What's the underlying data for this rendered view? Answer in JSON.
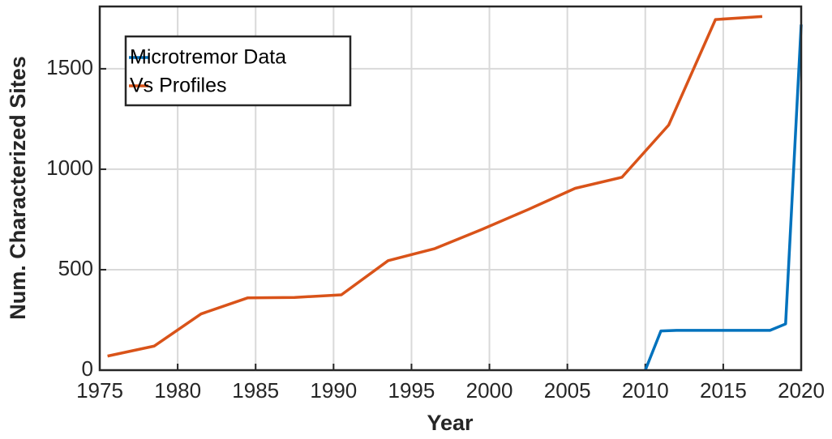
{
  "chart_data": {
    "type": "line",
    "x_label": "Year",
    "y_label": "Num. Characterized Sites",
    "series": [
      {
        "name": "Microtremor Data",
        "color": "#0072BD",
        "x": [
          2010,
          2011,
          2012,
          2018,
          2019,
          2020
        ],
        "values": [
          0,
          195,
          198,
          198,
          230,
          1720
        ]
      },
      {
        "name": "Vs Profiles",
        "color": "#D95319",
        "x": [
          1975.5,
          1978.5,
          1981.5,
          1984.5,
          1987.5,
          1990.5,
          1993.5,
          1996.5,
          1999.5,
          2002.5,
          2005.5,
          2008.5,
          2011.5,
          2014.5,
          2017.5
        ],
        "values": [
          70,
          120,
          280,
          360,
          362,
          375,
          545,
          605,
          700,
          800,
          905,
          960,
          1220,
          1745,
          1760
        ]
      }
    ],
    "xlim": [
      1975,
      2020
    ],
    "xticks": [
      1975,
      1980,
      1985,
      1990,
      1995,
      2000,
      2005,
      2010,
      2015,
      2020
    ],
    "ylim": [
      0,
      1810
    ],
    "yticks": [
      0,
      500,
      1000,
      1500
    ],
    "grid": true,
    "legend": "upper-left"
  }
}
